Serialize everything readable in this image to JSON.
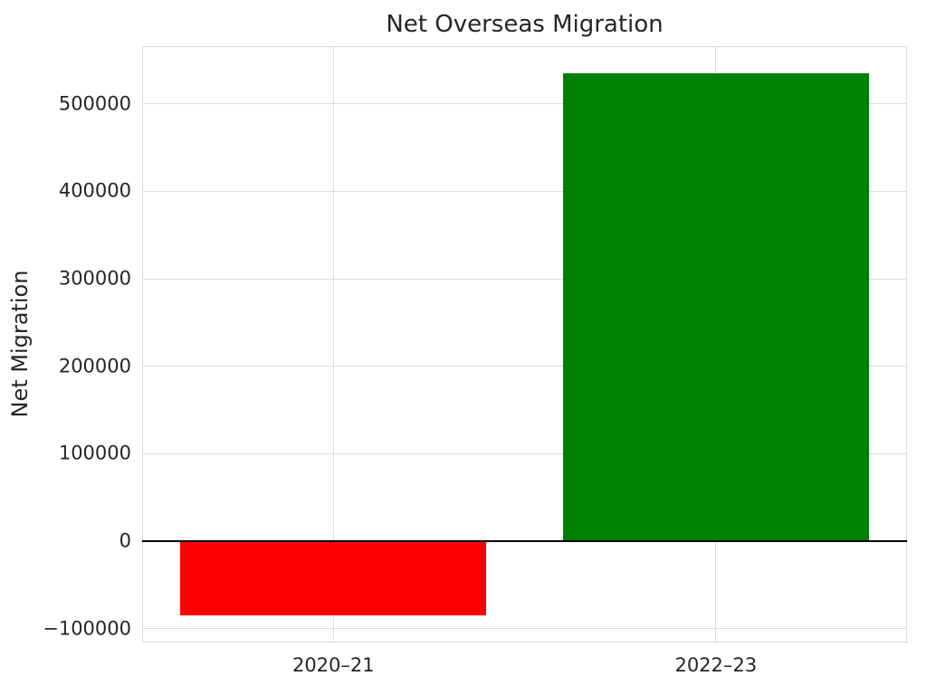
{
  "chart_data": {
    "type": "bar",
    "title": "Net Overseas Migration",
    "xlabel": "",
    "ylabel": "Net Migration",
    "categories": [
      "2020–21",
      "2022–23"
    ],
    "values": [
      -85000,
      535000
    ],
    "bar_colors": [
      "#ff0000",
      "#008000"
    ],
    "ylim": [
      -116000,
      566000
    ],
    "yticks": [
      -100000,
      0,
      100000,
      200000,
      300000,
      400000,
      500000
    ],
    "ytick_labels": [
      "−100000",
      "0",
      "100000",
      "200000",
      "300000",
      "400000",
      "500000"
    ],
    "grid": true,
    "grid_color": "#dcdcdc",
    "zero_line": true,
    "zero_line_color": "#000000",
    "background_color": "#ffffff",
    "legend": "none"
  }
}
